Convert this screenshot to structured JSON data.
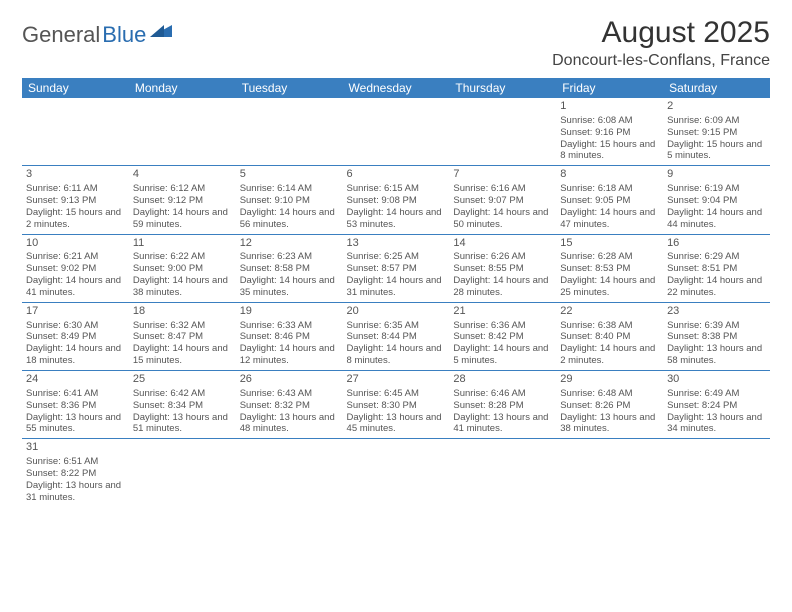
{
  "logo": {
    "text1": "General",
    "text2": "Blue"
  },
  "title": "August 2025",
  "location": "Doncourt-les-Conflans, France",
  "colors": {
    "header_bg": "#3a7fc0",
    "header_text": "#ffffff",
    "line": "#3a7fc0",
    "logo_blue": "#2a6db0",
    "text": "#555555"
  },
  "dayHeaders": [
    "Sunday",
    "Monday",
    "Tuesday",
    "Wednesday",
    "Thursday",
    "Friday",
    "Saturday"
  ],
  "weeks": [
    [
      null,
      null,
      null,
      null,
      null,
      {
        "d": "1",
        "sr": "6:08 AM",
        "ss": "9:16 PM",
        "dl": "15 hours and 8 minutes."
      },
      {
        "d": "2",
        "sr": "6:09 AM",
        "ss": "9:15 PM",
        "dl": "15 hours and 5 minutes."
      }
    ],
    [
      {
        "d": "3",
        "sr": "6:11 AM",
        "ss": "9:13 PM",
        "dl": "15 hours and 2 minutes."
      },
      {
        "d": "4",
        "sr": "6:12 AM",
        "ss": "9:12 PM",
        "dl": "14 hours and 59 minutes."
      },
      {
        "d": "5",
        "sr": "6:14 AM",
        "ss": "9:10 PM",
        "dl": "14 hours and 56 minutes."
      },
      {
        "d": "6",
        "sr": "6:15 AM",
        "ss": "9:08 PM",
        "dl": "14 hours and 53 minutes."
      },
      {
        "d": "7",
        "sr": "6:16 AM",
        "ss": "9:07 PM",
        "dl": "14 hours and 50 minutes."
      },
      {
        "d": "8",
        "sr": "6:18 AM",
        "ss": "9:05 PM",
        "dl": "14 hours and 47 minutes."
      },
      {
        "d": "9",
        "sr": "6:19 AM",
        "ss": "9:04 PM",
        "dl": "14 hours and 44 minutes."
      }
    ],
    [
      {
        "d": "10",
        "sr": "6:21 AM",
        "ss": "9:02 PM",
        "dl": "14 hours and 41 minutes."
      },
      {
        "d": "11",
        "sr": "6:22 AM",
        "ss": "9:00 PM",
        "dl": "14 hours and 38 minutes."
      },
      {
        "d": "12",
        "sr": "6:23 AM",
        "ss": "8:58 PM",
        "dl": "14 hours and 35 minutes."
      },
      {
        "d": "13",
        "sr": "6:25 AM",
        "ss": "8:57 PM",
        "dl": "14 hours and 31 minutes."
      },
      {
        "d": "14",
        "sr": "6:26 AM",
        "ss": "8:55 PM",
        "dl": "14 hours and 28 minutes."
      },
      {
        "d": "15",
        "sr": "6:28 AM",
        "ss": "8:53 PM",
        "dl": "14 hours and 25 minutes."
      },
      {
        "d": "16",
        "sr": "6:29 AM",
        "ss": "8:51 PM",
        "dl": "14 hours and 22 minutes."
      }
    ],
    [
      {
        "d": "17",
        "sr": "6:30 AM",
        "ss": "8:49 PM",
        "dl": "14 hours and 18 minutes."
      },
      {
        "d": "18",
        "sr": "6:32 AM",
        "ss": "8:47 PM",
        "dl": "14 hours and 15 minutes."
      },
      {
        "d": "19",
        "sr": "6:33 AM",
        "ss": "8:46 PM",
        "dl": "14 hours and 12 minutes."
      },
      {
        "d": "20",
        "sr": "6:35 AM",
        "ss": "8:44 PM",
        "dl": "14 hours and 8 minutes."
      },
      {
        "d": "21",
        "sr": "6:36 AM",
        "ss": "8:42 PM",
        "dl": "14 hours and 5 minutes."
      },
      {
        "d": "22",
        "sr": "6:38 AM",
        "ss": "8:40 PM",
        "dl": "14 hours and 2 minutes."
      },
      {
        "d": "23",
        "sr": "6:39 AM",
        "ss": "8:38 PM",
        "dl": "13 hours and 58 minutes."
      }
    ],
    [
      {
        "d": "24",
        "sr": "6:41 AM",
        "ss": "8:36 PM",
        "dl": "13 hours and 55 minutes."
      },
      {
        "d": "25",
        "sr": "6:42 AM",
        "ss": "8:34 PM",
        "dl": "13 hours and 51 minutes."
      },
      {
        "d": "26",
        "sr": "6:43 AM",
        "ss": "8:32 PM",
        "dl": "13 hours and 48 minutes."
      },
      {
        "d": "27",
        "sr": "6:45 AM",
        "ss": "8:30 PM",
        "dl": "13 hours and 45 minutes."
      },
      {
        "d": "28",
        "sr": "6:46 AM",
        "ss": "8:28 PM",
        "dl": "13 hours and 41 minutes."
      },
      {
        "d": "29",
        "sr": "6:48 AM",
        "ss": "8:26 PM",
        "dl": "13 hours and 38 minutes."
      },
      {
        "d": "30",
        "sr": "6:49 AM",
        "ss": "8:24 PM",
        "dl": "13 hours and 34 minutes."
      }
    ],
    [
      {
        "d": "31",
        "sr": "6:51 AM",
        "ss": "8:22 PM",
        "dl": "13 hours and 31 minutes."
      },
      null,
      null,
      null,
      null,
      null,
      null
    ]
  ],
  "labels": {
    "sunrise": "Sunrise: ",
    "sunset": "Sunset: ",
    "daylight": "Daylight: "
  }
}
